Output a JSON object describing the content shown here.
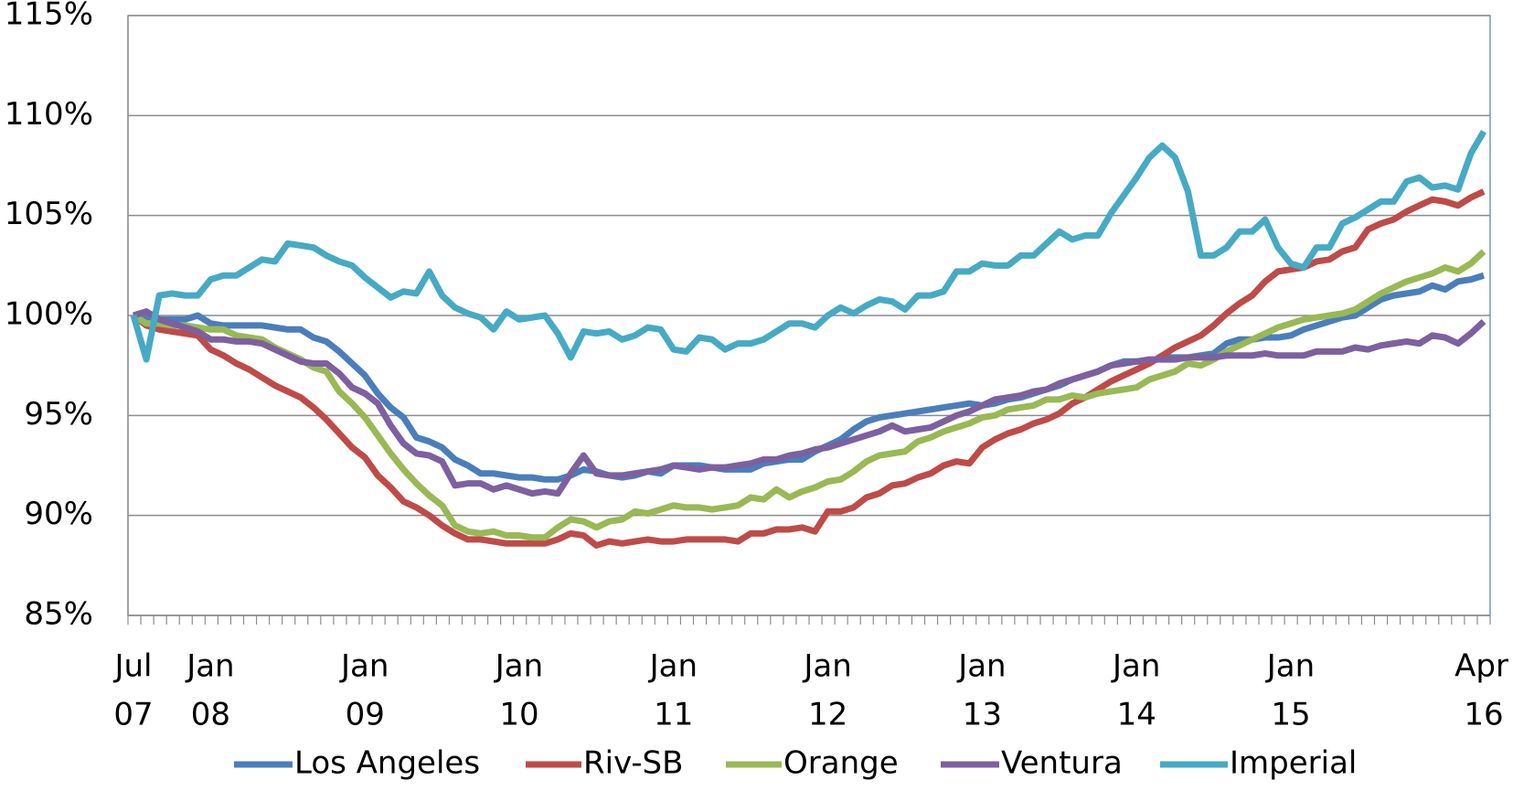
{
  "chart_data": {
    "type": "line",
    "ylim": [
      85,
      115
    ],
    "yticks": [
      {
        "value": 85,
        "label": "85%"
      },
      {
        "value": 90,
        "label": "90%"
      },
      {
        "value": 95,
        "label": "95%"
      },
      {
        "value": 100,
        "label": "100%"
      },
      {
        "value": 105,
        "label": "105%"
      },
      {
        "value": 110,
        "label": "110%"
      },
      {
        "value": 115,
        "label": "115%"
      }
    ],
    "grid": true,
    "legend": "bottom",
    "categories": [
      [
        "Jul",
        "07"
      ],
      null,
      null,
      null,
      null,
      null,
      [
        "Jan",
        "08"
      ],
      null,
      null,
      null,
      null,
      null,
      null,
      null,
      null,
      null,
      null,
      null,
      [
        "Jan",
        "09"
      ],
      null,
      null,
      null,
      null,
      null,
      null,
      null,
      null,
      null,
      null,
      null,
      [
        "Jan",
        "10"
      ],
      null,
      null,
      null,
      null,
      null,
      null,
      null,
      null,
      null,
      null,
      null,
      [
        "Jan",
        "11"
      ],
      null,
      null,
      null,
      null,
      null,
      null,
      null,
      null,
      null,
      null,
      null,
      [
        "Jan",
        "12"
      ],
      null,
      null,
      null,
      null,
      null,
      null,
      null,
      null,
      null,
      null,
      null,
      [
        "Jan",
        "13"
      ],
      null,
      null,
      null,
      null,
      null,
      null,
      null,
      null,
      null,
      null,
      null,
      [
        "Jan",
        "14"
      ],
      null,
      null,
      null,
      null,
      null,
      null,
      null,
      null,
      null,
      null,
      null,
      [
        "Jan",
        "15"
      ],
      null,
      null,
      null,
      null,
      null,
      null,
      null,
      null,
      null,
      null,
      null,
      null,
      null,
      null,
      [
        "Apr",
        "16"
      ]
    ],
    "series": [
      {
        "name": "Los Angeles",
        "color": "#4a7ebb",
        "values": [
          100,
          99.9,
          99.8,
          99.8,
          99.8,
          100.0,
          99.6,
          99.5,
          99.5,
          99.5,
          99.5,
          99.4,
          99.3,
          99.3,
          98.9,
          98.7,
          98.2,
          97.6,
          97.0,
          96.1,
          95.4,
          94.9,
          93.9,
          93.7,
          93.4,
          92.8,
          92.5,
          92.1,
          92.1,
          92.0,
          91.9,
          91.9,
          91.8,
          91.8,
          92.0,
          92.3,
          92.2,
          92.0,
          91.9,
          92.0,
          92.2,
          92.1,
          92.5,
          92.5,
          92.5,
          92.4,
          92.3,
          92.3,
          92.3,
          92.6,
          92.7,
          92.8,
          92.8,
          93.2,
          93.5,
          93.8,
          94.3,
          94.7,
          94.9,
          95.0,
          95.1,
          95.2,
          95.3,
          95.4,
          95.5,
          95.6,
          95.5,
          95.6,
          95.8,
          95.9,
          96.1,
          96.3,
          96.5,
          96.8,
          97.0,
          97.2,
          97.5,
          97.7,
          97.7,
          97.7,
          97.9,
          97.9,
          97.9,
          98.0,
          98.1,
          98.6,
          98.8,
          98.8,
          98.9,
          98.9,
          99.0,
          99.3,
          99.5,
          99.7,
          99.9,
          100.0,
          100.4,
          100.8,
          101.0,
          101.1,
          101.2,
          101.5,
          101.3,
          101.7,
          101.8,
          102.0
        ]
      },
      {
        "name": "Riv-SB",
        "color": "#be4b48",
        "values": [
          100,
          99.5,
          99.3,
          99.2,
          99.1,
          99.0,
          98.3,
          98.0,
          97.6,
          97.3,
          96.9,
          96.5,
          96.2,
          95.9,
          95.4,
          94.8,
          94.1,
          93.4,
          92.9,
          92.0,
          91.4,
          90.7,
          90.4,
          90.0,
          89.5,
          89.1,
          88.8,
          88.8,
          88.7,
          88.6,
          88.6,
          88.6,
          88.6,
          88.8,
          89.1,
          89.0,
          88.5,
          88.7,
          88.6,
          88.7,
          88.8,
          88.7,
          88.7,
          88.8,
          88.8,
          88.8,
          88.8,
          88.7,
          89.1,
          89.1,
          89.3,
          89.3,
          89.4,
          89.2,
          90.2,
          90.2,
          90.4,
          90.9,
          91.1,
          91.5,
          91.6,
          91.9,
          92.1,
          92.5,
          92.7,
          92.6,
          93.4,
          93.8,
          94.1,
          94.3,
          94.6,
          94.8,
          95.1,
          95.6,
          95.9,
          96.3,
          96.7,
          97.0,
          97.3,
          97.6,
          98.0,
          98.4,
          98.7,
          99.0,
          99.5,
          100.1,
          100.6,
          101.0,
          101.7,
          102.2,
          102.3,
          102.4,
          102.7,
          102.8,
          103.2,
          103.4,
          104.3,
          104.6,
          104.8,
          105.2,
          105.5,
          105.8,
          105.7,
          105.5,
          105.9,
          106.2
        ]
      },
      {
        "name": "Orange",
        "color": "#98b954",
        "values": [
          100,
          99.6,
          99.6,
          99.5,
          99.5,
          99.4,
          99.3,
          99.3,
          99.0,
          98.9,
          98.8,
          98.4,
          98.1,
          97.8,
          97.4,
          97.2,
          96.2,
          95.6,
          94.9,
          94.0,
          93.1,
          92.3,
          91.6,
          91.0,
          90.5,
          89.5,
          89.2,
          89.1,
          89.2,
          89.0,
          89.0,
          88.9,
          88.9,
          89.4,
          89.8,
          89.7,
          89.4,
          89.7,
          89.8,
          90.2,
          90.1,
          90.3,
          90.5,
          90.4,
          90.4,
          90.3,
          90.4,
          90.5,
          90.9,
          90.8,
          91.3,
          90.9,
          91.2,
          91.4,
          91.7,
          91.8,
          92.2,
          92.7,
          93.0,
          93.1,
          93.2,
          93.7,
          93.9,
          94.2,
          94.4,
          94.6,
          94.9,
          95.0,
          95.3,
          95.4,
          95.5,
          95.8,
          95.8,
          96.0,
          95.9,
          96.1,
          96.2,
          96.3,
          96.4,
          96.8,
          97.0,
          97.2,
          97.6,
          97.5,
          97.8,
          98.2,
          98.5,
          98.8,
          99.1,
          99.4,
          99.6,
          99.8,
          99.9,
          100.0,
          100.1,
          100.3,
          100.7,
          101.1,
          101.4,
          101.7,
          101.9,
          102.1,
          102.4,
          102.2,
          102.6,
          103.2
        ]
      },
      {
        "name": "Ventura",
        "color": "#7d60a0",
        "values": [
          100,
          100.2,
          99.8,
          99.6,
          99.4,
          99.2,
          98.8,
          98.8,
          98.7,
          98.7,
          98.6,
          98.3,
          98.0,
          97.7,
          97.6,
          97.6,
          97.1,
          96.4,
          96.1,
          95.6,
          94.5,
          93.6,
          93.1,
          93.0,
          92.7,
          91.5,
          91.6,
          91.6,
          91.3,
          91.5,
          91.3,
          91.1,
          91.2,
          91.1,
          92.1,
          93.0,
          92.1,
          92.0,
          92.0,
          92.1,
          92.2,
          92.3,
          92.5,
          92.4,
          92.3,
          92.4,
          92.4,
          92.5,
          92.6,
          92.8,
          92.8,
          93.0,
          93.1,
          93.3,
          93.4,
          93.6,
          93.8,
          94.0,
          94.2,
          94.5,
          94.2,
          94.3,
          94.4,
          94.7,
          95.0,
          95.2,
          95.5,
          95.8,
          95.9,
          96.0,
          96.2,
          96.3,
          96.6,
          96.8,
          97.0,
          97.2,
          97.5,
          97.6,
          97.7,
          97.8,
          97.8,
          97.8,
          97.9,
          97.9,
          97.9,
          98.0,
          98.0,
          98.0,
          98.1,
          98.0,
          98.0,
          98.0,
          98.2,
          98.2,
          98.2,
          98.4,
          98.3,
          98.5,
          98.6,
          98.7,
          98.6,
          99.0,
          98.9,
          98.6,
          99.1,
          99.7
        ]
      },
      {
        "name": "Imperial",
        "color": "#46aac5",
        "values": [
          100,
          97.8,
          101.0,
          101.1,
          101.0,
          101.0,
          101.8,
          102.0,
          102.0,
          102.4,
          102.8,
          102.7,
          103.6,
          103.5,
          103.4,
          103.0,
          102.7,
          102.5,
          101.9,
          101.4,
          100.9,
          101.2,
          101.1,
          102.2,
          101.0,
          100.4,
          100.1,
          99.9,
          99.3,
          100.2,
          99.8,
          99.9,
          100.0,
          99.1,
          97.9,
          99.2,
          99.1,
          99.2,
          98.8,
          99.0,
          99.4,
          99.3,
          98.3,
          98.2,
          98.9,
          98.8,
          98.3,
          98.6,
          98.6,
          98.8,
          99.2,
          99.6,
          99.6,
          99.4,
          100.0,
          100.4,
          100.1,
          100.5,
          100.8,
          100.7,
          100.3,
          101.0,
          101.0,
          101.2,
          102.2,
          102.2,
          102.6,
          102.5,
          102.5,
          103.0,
          103.0,
          103.6,
          104.2,
          103.8,
          104.0,
          104.0,
          105.1,
          106.0,
          106.9,
          107.9,
          108.5,
          107.9,
          106.2,
          103.0,
          103.0,
          103.4,
          104.2,
          104.2,
          104.8,
          103.4,
          102.6,
          102.4,
          103.4,
          103.4,
          104.6,
          104.9,
          105.3,
          105.7,
          105.7,
          106.7,
          106.9,
          106.4,
          106.5,
          106.3,
          108.1,
          109.2
        ]
      }
    ]
  }
}
